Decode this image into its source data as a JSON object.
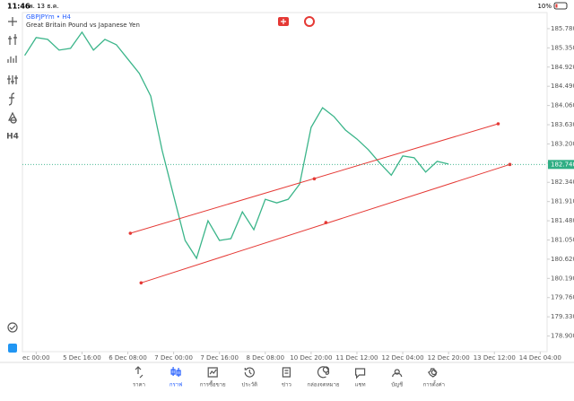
{
  "status_bar": {
    "time": "11:46",
    "date": "พ. 13 ธ.ค.",
    "battery": "10%"
  },
  "toolbar": {
    "timeframe": "H4"
  },
  "chart_data": {
    "type": "line",
    "title": "GBPJPYm • H4",
    "subtitle": "Great Britain Pound vs Japanese Yen",
    "x": [
      -1,
      0,
      1,
      2,
      3,
      4,
      5,
      6,
      7,
      8,
      9,
      10,
      11,
      12,
      13,
      14,
      15,
      16,
      17,
      18,
      19,
      20,
      21,
      22,
      23,
      24,
      25,
      26,
      27,
      28,
      29,
      30,
      31,
      32,
      33,
      34,
      35,
      36
    ],
    "series": [
      {
        "color": "#3bb58a",
        "values": [
          185.18,
          185.58,
          185.54,
          185.3,
          185.34,
          185.7,
          185.3,
          185.54,
          185.42,
          185.1,
          184.78,
          184.27,
          183.05,
          182.04,
          181.04,
          180.64,
          181.48,
          181.04,
          181.08,
          181.68,
          181.28,
          181.96,
          181.88,
          181.96,
          182.3,
          183.57,
          184.01,
          183.81,
          183.51,
          183.31,
          183.07,
          182.77,
          182.5,
          182.93,
          182.89,
          182.57,
          182.81,
          182.75
        ]
      }
    ],
    "xlim": [
      -1.2,
      44.6
    ],
    "xticks": [
      {
        "value": 0,
        "label": "ec 00:00"
      },
      {
        "value": 4,
        "label": "5 Dec 16:00"
      },
      {
        "value": 8,
        "label": "6 Dec 08:00"
      },
      {
        "value": 12,
        "label": "7 Dec 00:00"
      },
      {
        "value": 16,
        "label": "7 Dec 16:00"
      },
      {
        "value": 20,
        "label": "8 Dec 08:00"
      },
      {
        "value": 24,
        "label": "10 Dec 20:00"
      },
      {
        "value": 28,
        "label": "11 Dec 12:00"
      },
      {
        "value": 32,
        "label": "12 Dec 04:00"
      },
      {
        "value": 36,
        "label": "12 Dec 20:00"
      },
      {
        "value": 40,
        "label": "13 Dec 12:00"
      },
      {
        "value": 44,
        "label": "14 Dec 04:00"
      }
    ],
    "ylim": [
      178.55,
      186.14
    ],
    "yticks": [
      {
        "value": 185.78,
        "label": "185.780"
      },
      {
        "value": 185.35,
        "label": "185.350"
      },
      {
        "value": 184.92,
        "label": "184.920"
      },
      {
        "value": 184.49,
        "label": "184.490"
      },
      {
        "value": 184.06,
        "label": "184.060"
      },
      {
        "value": 183.63,
        "label": "183.630"
      },
      {
        "value": 183.2,
        "label": "183.200"
      },
      {
        "value": 182.77,
        "label": "182.770"
      },
      {
        "value": 182.34,
        "label": "182.340"
      },
      {
        "value": 181.91,
        "label": "181.910"
      },
      {
        "value": 181.48,
        "label": "181.480"
      },
      {
        "value": 181.05,
        "label": "181.050"
      },
      {
        "value": 180.62,
        "label": "180.620"
      },
      {
        "value": 180.19,
        "label": "180.190"
      },
      {
        "value": 179.76,
        "label": "179.760"
      },
      {
        "value": 179.33,
        "label": "179.330"
      },
      {
        "value": 178.9,
        "label": "178.900"
      }
    ],
    "current_price": {
      "value": 182.74,
      "label": "182.740",
      "color": "#2fae84"
    },
    "channels": [
      {
        "color": "#e53935",
        "x": [
          8.22,
          24.28,
          40.33
        ],
        "values": [
          181.2,
          182.42,
          183.65
        ]
      },
      {
        "color": "#e53935",
        "x": [
          9.16,
          25.29,
          41.35
        ],
        "values": [
          180.09,
          181.44,
          182.74
        ]
      }
    ]
  },
  "tabs": [
    "ราคา",
    "กราฟ",
    "การซื้อขาย",
    "ประวัติ",
    "ข่าว",
    "กล่องจดหมาย",
    "แชท",
    "บัญชี",
    "การตั้งค่า"
  ],
  "active_tab": 1
}
